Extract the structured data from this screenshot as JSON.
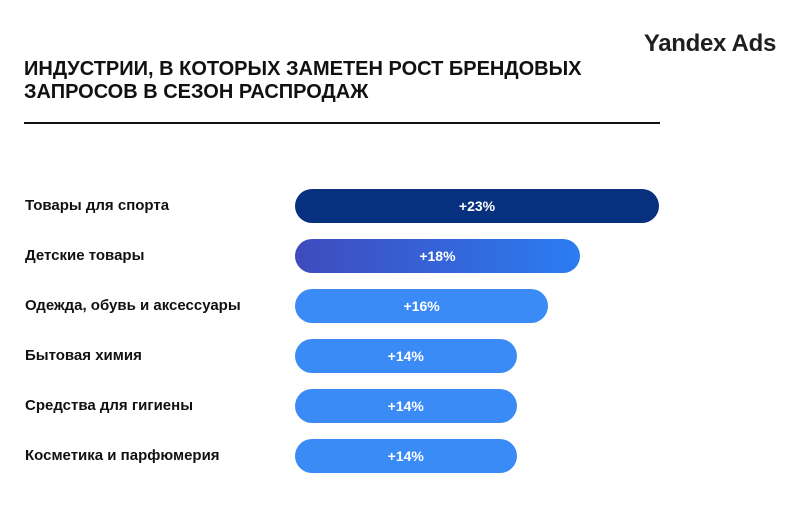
{
  "brand": "Yandex Ads",
  "chart_data": {
    "type": "bar",
    "orientation": "horizontal",
    "title": "ИНДУСТРИИ, В КОТОРЫХ ЗАМЕТЕН РОСТ БРЕНДОВЫХ ЗАПРОСОВ В СЕЗОН РАСПРОДАЖ",
    "categories": [
      "Товары для спорта",
      "Детские товары",
      "Одежда, обувь и аксессуары",
      "Бытовая химия",
      "Средства для гигиены",
      "Косметика и парфюмерия"
    ],
    "values": [
      23,
      18,
      16,
      14,
      14,
      14
    ],
    "value_labels": [
      "+23%",
      "+18%",
      "+16%",
      "+14%",
      "+14%",
      "+14%"
    ],
    "unit": "%",
    "grid": false,
    "legend": "none",
    "colors": {
      "top": "#07307e",
      "second_start": "#3f4bbd",
      "second_end": "#2b7cf2",
      "rest": "#3b8bf7"
    }
  }
}
